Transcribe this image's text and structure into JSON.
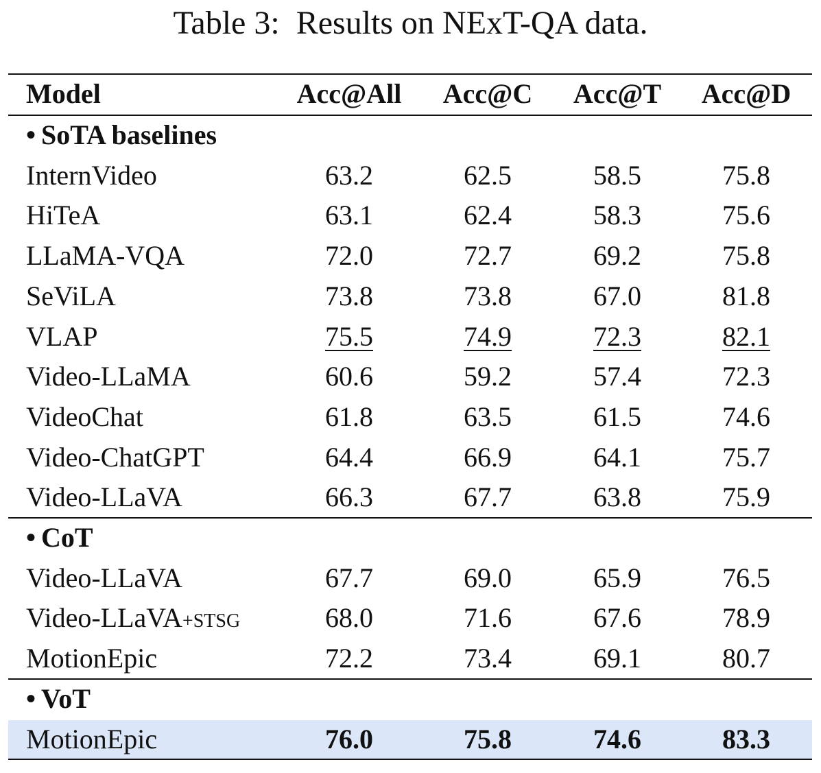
{
  "caption": "Table 3:  Results on NExT-QA data.",
  "columns": [
    "Model",
    "Acc@All",
    "Acc@C",
    "Acc@T",
    "Acc@D"
  ],
  "groups": [
    {
      "label": "SoTA baselines",
      "rows": [
        {
          "model": "InternVideo",
          "values": [
            "63.2",
            "62.5",
            "58.5",
            "75.8"
          ]
        },
        {
          "model": "HiTeA",
          "values": [
            "63.1",
            "62.4",
            "58.3",
            "75.6"
          ]
        },
        {
          "model": "LLaMA-VQA",
          "values": [
            "72.0",
            "72.7",
            "69.2",
            "75.8"
          ]
        },
        {
          "model": "SeViLA",
          "values": [
            "73.8",
            "73.8",
            "67.0",
            "81.8"
          ]
        },
        {
          "model": "VLAP",
          "values": [
            "75.5",
            "74.9",
            "72.3",
            "82.1"
          ],
          "underline": true
        },
        {
          "model": "Video-LLaMA",
          "values": [
            "60.6",
            "59.2",
            "57.4",
            "72.3"
          ]
        },
        {
          "model": "VideoChat",
          "values": [
            "61.8",
            "63.5",
            "61.5",
            "74.6"
          ]
        },
        {
          "model": "Video-ChatGPT",
          "values": [
            "64.4",
            "66.9",
            "64.1",
            "75.7"
          ]
        },
        {
          "model": "Video-LLaVA",
          "values": [
            "66.3",
            "67.7",
            "63.8",
            "75.9"
          ]
        }
      ]
    },
    {
      "label": "CoT",
      "rows": [
        {
          "model": "Video-LLaVA",
          "values": [
            "67.7",
            "69.0",
            "65.9",
            "76.5"
          ]
        },
        {
          "model": "Video-LLaVA",
          "model_suffix": "+STSG",
          "values": [
            "68.0",
            "71.6",
            "67.6",
            "78.9"
          ]
        },
        {
          "model": "MotionEpic",
          "values": [
            "72.2",
            "73.4",
            "69.1",
            "80.7"
          ]
        }
      ]
    },
    {
      "label": "VoT",
      "rows": [
        {
          "model": "MotionEpic",
          "values": [
            "76.0",
            "75.8",
            "74.6",
            "83.3"
          ],
          "bold": true,
          "highlight": true,
          "highlight_color": "#dbe7f8"
        }
      ]
    }
  ]
}
